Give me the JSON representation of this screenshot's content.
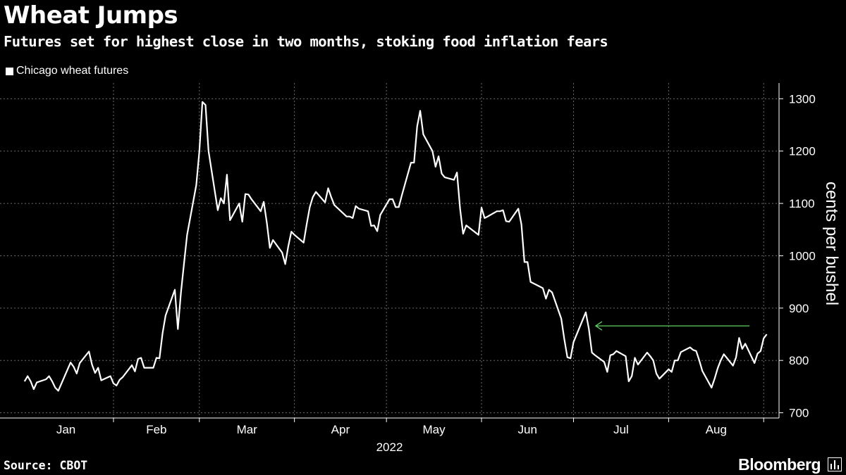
{
  "header": {
    "title": "Wheat Jumps",
    "subtitle": "Futures set for highest close in two months, stoking food inflation fears"
  },
  "footer": {
    "source": "Source: CBOT",
    "brand": "Bloomberg"
  },
  "colors": {
    "background": "#000000",
    "line": "#ffffff",
    "grid": "#6b6b6b",
    "annotation_arrow": "#5fd35f"
  },
  "chart_data": {
    "type": "line",
    "title": "Wheat Jumps",
    "subtitle": "Futures set for highest close in two months, stoking food inflation fears",
    "xlabel": "2022",
    "ylabel": "cents per bushel",
    "ylim": [
      690,
      1330
    ],
    "yticks": [
      700,
      800,
      900,
      1000,
      1100,
      1200,
      1300
    ],
    "xticks": [
      "Jan",
      "Feb",
      "Mar",
      "Apr",
      "May",
      "Jun",
      "Jul",
      "Aug"
    ],
    "x_year_label": "2022",
    "grid": true,
    "legend_position": "top-left",
    "annotations": [
      {
        "type": "arrow",
        "from": [
          "2022-08-26",
          866
        ],
        "to": [
          "2022-07-05",
          866
        ],
        "color": "#5fd35f"
      }
    ],
    "series": [
      {
        "name": "Chicago wheat futures",
        "color": "#ffffff",
        "points": [
          [
            "2022-01-03",
            760
          ],
          [
            "2022-01-04",
            770
          ],
          [
            "2022-01-05",
            760
          ],
          [
            "2022-01-06",
            745
          ],
          [
            "2022-01-07",
            758
          ],
          [
            "2022-01-10",
            764
          ],
          [
            "2022-01-11",
            770
          ],
          [
            "2022-01-12",
            760
          ],
          [
            "2022-01-13",
            748
          ],
          [
            "2022-01-14",
            742
          ],
          [
            "2022-01-18",
            796
          ],
          [
            "2022-01-19",
            788
          ],
          [
            "2022-01-20",
            775
          ],
          [
            "2022-01-21",
            795
          ],
          [
            "2022-01-24",
            817
          ],
          [
            "2022-01-25",
            792
          ],
          [
            "2022-01-26",
            776
          ],
          [
            "2022-01-27",
            786
          ],
          [
            "2022-01-28",
            762
          ],
          [
            "2022-01-31",
            770
          ],
          [
            "2022-02-01",
            756
          ],
          [
            "2022-02-02",
            752
          ],
          [
            "2022-02-03",
            763
          ],
          [
            "2022-02-04",
            768
          ],
          [
            "2022-02-07",
            791
          ],
          [
            "2022-02-08",
            779
          ],
          [
            "2022-02-09",
            803
          ],
          [
            "2022-02-10",
            805
          ],
          [
            "2022-02-11",
            786
          ],
          [
            "2022-02-14",
            786
          ],
          [
            "2022-02-15",
            805
          ],
          [
            "2022-02-16",
            804
          ],
          [
            "2022-02-17",
            852
          ],
          [
            "2022-02-18",
            886
          ],
          [
            "2022-02-21",
            935
          ],
          [
            "2022-02-22",
            860
          ],
          [
            "2022-02-23",
            930
          ],
          [
            "2022-02-24",
            985
          ],
          [
            "2022-02-25",
            1040
          ],
          [
            "2022-02-28",
            1135
          ],
          [
            "2022-03-01",
            1200
          ],
          [
            "2022-03-02",
            1294
          ],
          [
            "2022-03-03",
            1288
          ],
          [
            "2022-03-04",
            1200
          ],
          [
            "2022-03-07",
            1087
          ],
          [
            "2022-03-08",
            1110
          ],
          [
            "2022-03-09",
            1100
          ],
          [
            "2022-03-10",
            1155
          ],
          [
            "2022-03-11",
            1068
          ],
          [
            "2022-03-14",
            1100
          ],
          [
            "2022-03-15",
            1065
          ],
          [
            "2022-03-16",
            1118
          ],
          [
            "2022-03-17",
            1117
          ],
          [
            "2022-03-18",
            1108
          ],
          [
            "2022-03-21",
            1085
          ],
          [
            "2022-03-22",
            1103
          ],
          [
            "2022-03-23",
            1063
          ],
          [
            "2022-03-24",
            1015
          ],
          [
            "2022-03-25",
            1030
          ],
          [
            "2022-03-28",
            1006
          ],
          [
            "2022-03-29",
            984
          ],
          [
            "2022-03-30",
            1018
          ],
          [
            "2022-03-31",
            1046
          ],
          [
            "2022-04-01",
            1040
          ],
          [
            "2022-04-04",
            1025
          ],
          [
            "2022-04-05",
            1060
          ],
          [
            "2022-04-06",
            1093
          ],
          [
            "2022-04-07",
            1112
          ],
          [
            "2022-04-08",
            1122
          ],
          [
            "2022-04-11",
            1102
          ],
          [
            "2022-04-12",
            1129
          ],
          [
            "2022-04-13",
            1112
          ],
          [
            "2022-04-14",
            1097
          ],
          [
            "2022-04-18",
            1075
          ],
          [
            "2022-04-19",
            1075
          ],
          [
            "2022-04-20",
            1072
          ],
          [
            "2022-04-21",
            1095
          ],
          [
            "2022-04-22",
            1090
          ],
          [
            "2022-04-25",
            1085
          ],
          [
            "2022-04-26",
            1057
          ],
          [
            "2022-04-27",
            1058
          ],
          [
            "2022-04-28",
            1047
          ],
          [
            "2022-04-29",
            1078
          ],
          [
            "2022-05-02",
            1108
          ],
          [
            "2022-05-03",
            1108
          ],
          [
            "2022-05-04",
            1093
          ],
          [
            "2022-05-05",
            1093
          ],
          [
            "2022-05-06",
            1115
          ],
          [
            "2022-05-09",
            1178
          ],
          [
            "2022-05-10",
            1178
          ],
          [
            "2022-05-11",
            1247
          ],
          [
            "2022-05-12",
            1277
          ],
          [
            "2022-05-13",
            1232
          ],
          [
            "2022-05-16",
            1200
          ],
          [
            "2022-05-17",
            1170
          ],
          [
            "2022-05-18",
            1190
          ],
          [
            "2022-05-19",
            1157
          ],
          [
            "2022-05-20",
            1150
          ],
          [
            "2022-05-23",
            1145
          ],
          [
            "2022-05-24",
            1159
          ],
          [
            "2022-05-25",
            1090
          ],
          [
            "2022-05-26",
            1042
          ],
          [
            "2022-05-27",
            1058
          ],
          [
            "2022-05-31",
            1040
          ],
          [
            "2022-06-01",
            1092
          ],
          [
            "2022-06-02",
            1072
          ],
          [
            "2022-06-03",
            1075
          ],
          [
            "2022-06-06",
            1085
          ],
          [
            "2022-06-07",
            1085
          ],
          [
            "2022-06-08",
            1087
          ],
          [
            "2022-06-09",
            1066
          ],
          [
            "2022-06-10",
            1065
          ],
          [
            "2022-06-13",
            1090
          ],
          [
            "2022-06-14",
            1060
          ],
          [
            "2022-06-15",
            988
          ],
          [
            "2022-06-16",
            988
          ],
          [
            "2022-06-17",
            950
          ],
          [
            "2022-06-21",
            938
          ],
          [
            "2022-06-22",
            918
          ],
          [
            "2022-06-23",
            935
          ],
          [
            "2022-06-24",
            930
          ],
          [
            "2022-06-27",
            880
          ],
          [
            "2022-06-28",
            840
          ],
          [
            "2022-06-29",
            806
          ],
          [
            "2022-06-30",
            804
          ],
          [
            "2022-07-01",
            835
          ],
          [
            "2022-07-05",
            892
          ],
          [
            "2022-07-06",
            860
          ],
          [
            "2022-07-07",
            815
          ],
          [
            "2022-07-08",
            810
          ],
          [
            "2022-07-11",
            797
          ],
          [
            "2022-07-12",
            778
          ],
          [
            "2022-07-13",
            810
          ],
          [
            "2022-07-14",
            812
          ],
          [
            "2022-07-15",
            818
          ],
          [
            "2022-07-18",
            808
          ],
          [
            "2022-07-19",
            760
          ],
          [
            "2022-07-20",
            770
          ],
          [
            "2022-07-21",
            805
          ],
          [
            "2022-07-22",
            792
          ],
          [
            "2022-07-25",
            815
          ],
          [
            "2022-07-26",
            808
          ],
          [
            "2022-07-27",
            800
          ],
          [
            "2022-07-28",
            775
          ],
          [
            "2022-07-29",
            765
          ],
          [
            "2022-08-01",
            783
          ],
          [
            "2022-08-02",
            778
          ],
          [
            "2022-08-03",
            800
          ],
          [
            "2022-08-04",
            800
          ],
          [
            "2022-08-05",
            816
          ],
          [
            "2022-08-08",
            825
          ],
          [
            "2022-08-09",
            820
          ],
          [
            "2022-08-10",
            818
          ],
          [
            "2022-08-11",
            800
          ],
          [
            "2022-08-12",
            780
          ],
          [
            "2022-08-15",
            748
          ],
          [
            "2022-08-16",
            765
          ],
          [
            "2022-08-17",
            785
          ],
          [
            "2022-08-18",
            800
          ],
          [
            "2022-08-19",
            812
          ],
          [
            "2022-08-22",
            790
          ],
          [
            "2022-08-23",
            806
          ],
          [
            "2022-08-24",
            843
          ],
          [
            "2022-08-25",
            822
          ],
          [
            "2022-08-26",
            832
          ],
          [
            "2022-08-29",
            795
          ],
          [
            "2022-08-30",
            813
          ],
          [
            "2022-08-31",
            818
          ],
          [
            "2022-09-01",
            842
          ],
          [
            "2022-09-02",
            850
          ]
        ]
      }
    ]
  }
}
